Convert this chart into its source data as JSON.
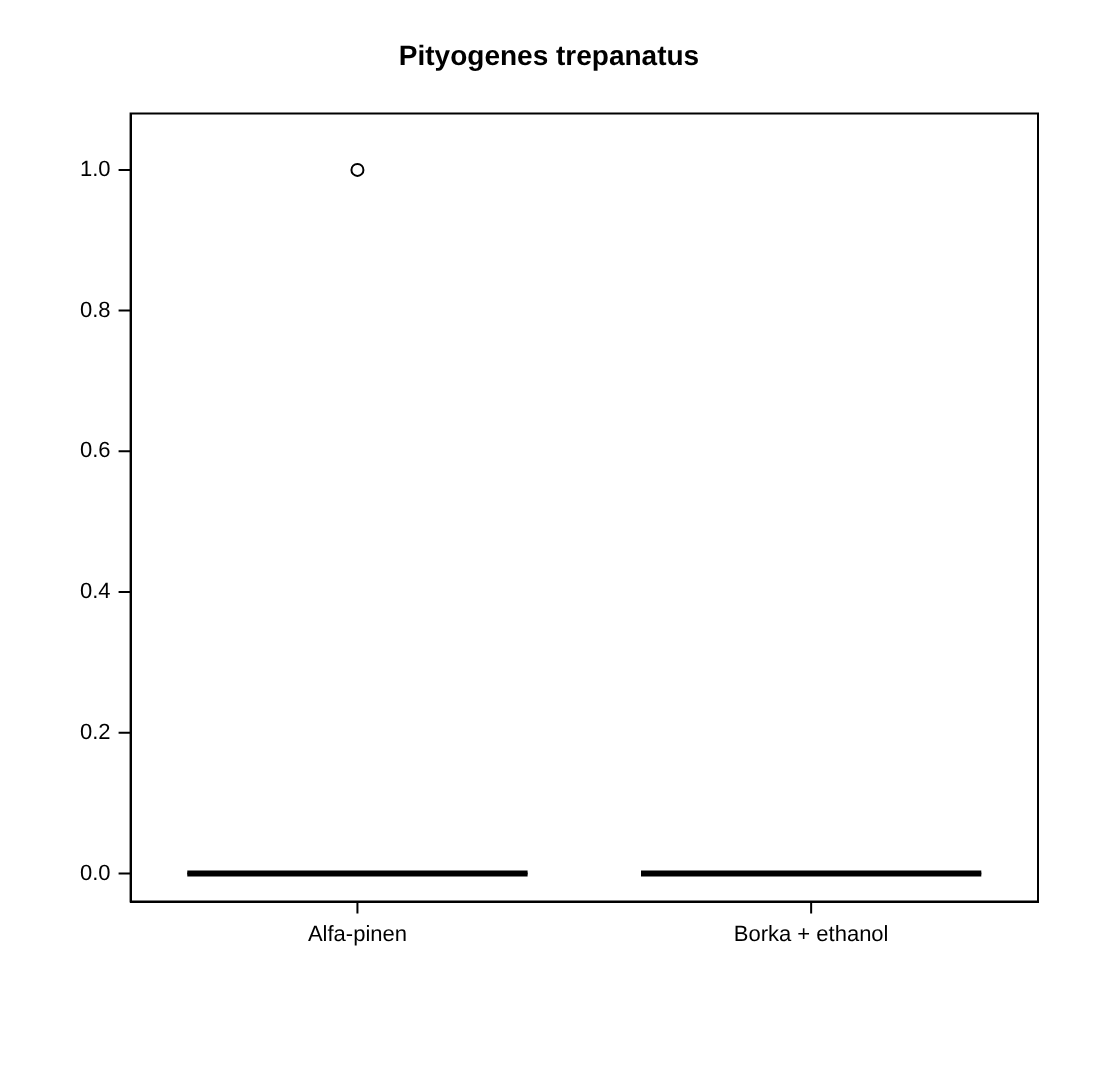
{
  "chart_data": {
    "type": "box",
    "title": "Pityogenes trepanatus",
    "categories": [
      "Alfa-pinen",
      "Borka + ethanol"
    ],
    "boxes": [
      {
        "low": 0,
        "q1": 0,
        "median": 0,
        "q3": 0,
        "high": 0,
        "outliers": [
          1
        ]
      },
      {
        "low": 0,
        "q1": 0,
        "median": 0,
        "q3": 0,
        "high": 0
      }
    ],
    "ylim": [
      -0.04,
      1.08
    ],
    "yticks": [
      {
        "value": 0,
        "label": "0.0"
      },
      {
        "value": 0.2,
        "label": "0.2"
      },
      {
        "value": 0.4,
        "label": "0.4"
      },
      {
        "value": 0.6,
        "label": "0.6"
      },
      {
        "value": 0.8,
        "label": "0.8"
      },
      {
        "value": 1,
        "label": "1.0"
      }
    ],
    "marker": "circle",
    "legend": false
  }
}
